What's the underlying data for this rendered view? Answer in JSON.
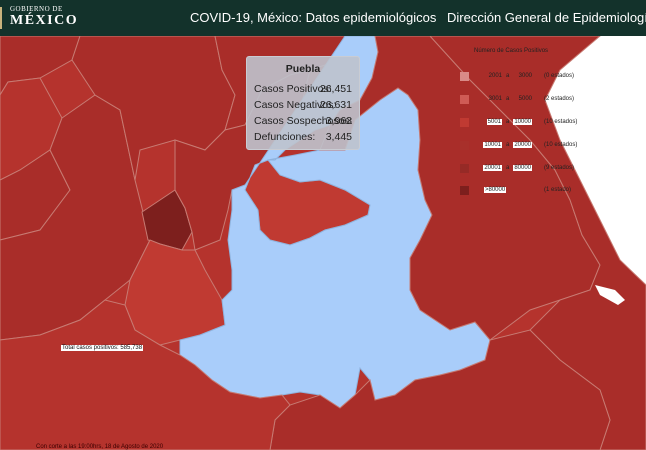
{
  "header": {
    "logo_small": "GOBIERNO DE",
    "logo_big": "MÉXICO",
    "title": "COVID-19, México: Datos epidemiológicos",
    "org": "Dirección General de Epidemiología"
  },
  "tooltip": {
    "state": "Puebla",
    "rows": [
      {
        "label": "Casos Positivos:",
        "value": "26,451"
      },
      {
        "label": "Casos Negativos:",
        "value": "26,631"
      },
      {
        "label": "Casos Sospechosos:",
        "value": "3,963"
      },
      {
        "label": "Defunciones:",
        "value": "3,445"
      }
    ]
  },
  "legend": {
    "title": "Número de Casos Positivos",
    "items": [
      {
        "min": "2001",
        "sep": "a",
        "max": "3000",
        "count": "(0 estados)",
        "color": "#d98a87"
      },
      {
        "min": "3001",
        "sep": "a",
        "max": "5000",
        "count": "(2 estados)",
        "color": "#cf5b55"
      },
      {
        "min": "5001",
        "sep": "a",
        "max": "10000",
        "count": "(10 estados)",
        "color": "#c03a32"
      },
      {
        "min": "10001",
        "sep": "a",
        "max": "20000",
        "count": "(10 estados)",
        "color": "#a8302b"
      },
      {
        "min": "20001",
        "sep": "a",
        "max": "80000",
        "count": "(9 estados)",
        "color": "#962a26"
      },
      {
        "min": ">80000",
        "sep": "",
        "max": "",
        "count": "(1 estado)",
        "color": "#7d1f1d"
      }
    ]
  },
  "summary": {
    "total_label": "Total casos positivos: 585,738",
    "cutoff": "Con corte a las 19:00hrs, 18 de Agosto de 2020"
  },
  "colors": {
    "header_bg": "#13322b",
    "selected_state": "#a9cdfa",
    "state_border": "#bf7a72"
  }
}
